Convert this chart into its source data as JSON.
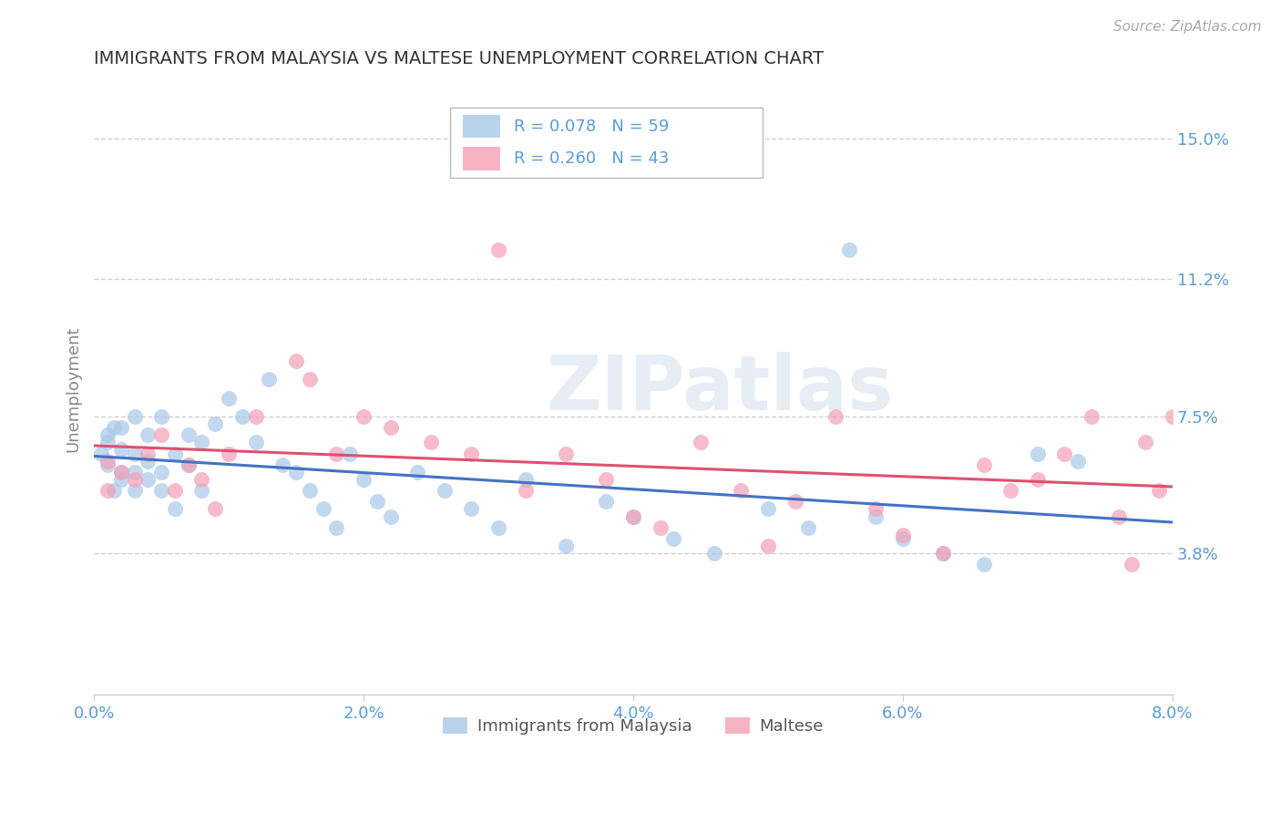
{
  "title": "IMMIGRANTS FROM MALAYSIA VS MALTESE UNEMPLOYMENT CORRELATION CHART",
  "source_text": "Source: ZipAtlas.com",
  "ylabel": "Unemployment",
  "xlim": [
    0.0,
    0.08
  ],
  "ylim": [
    0.0,
    0.165
  ],
  "xtick_labels": [
    "0.0%",
    "2.0%",
    "4.0%",
    "6.0%",
    "8.0%"
  ],
  "xtick_values": [
    0.0,
    0.02,
    0.04,
    0.06,
    0.08
  ],
  "ytick_labels": [
    "3.8%",
    "7.5%",
    "11.2%",
    "15.0%"
  ],
  "ytick_values": [
    0.038,
    0.075,
    0.112,
    0.15
  ],
  "grid_color": "#cccccc",
  "background_color": "#ffffff",
  "watermark": "ZIPatlas",
  "series1_label": "Immigrants from Malaysia",
  "series1_color": "#a8c8e8",
  "series1_line_color": "#4472c4",
  "series1_R": 0.078,
  "series1_N": 59,
  "series2_label": "Maltese",
  "series2_color": "#f4a0b5",
  "series2_line_color": "#e05070",
  "series2_R": 0.26,
  "series2_N": 43,
  "title_color": "#333333",
  "tick_label_color": "#5b9bd5",
  "legend_R_color": "#5b9bd5",
  "series1_x": [
    0.0005,
    0.001,
    0.001,
    0.001,
    0.0015,
    0.0015,
    0.002,
    0.002,
    0.002,
    0.002,
    0.003,
    0.003,
    0.003,
    0.003,
    0.004,
    0.004,
    0.004,
    0.005,
    0.005,
    0.005,
    0.006,
    0.006,
    0.007,
    0.007,
    0.008,
    0.008,
    0.009,
    0.01,
    0.011,
    0.012,
    0.013,
    0.014,
    0.015,
    0.016,
    0.017,
    0.018,
    0.019,
    0.02,
    0.021,
    0.022,
    0.024,
    0.026,
    0.028,
    0.03,
    0.032,
    0.035,
    0.038,
    0.04,
    0.043,
    0.046,
    0.05,
    0.053,
    0.056,
    0.058,
    0.06,
    0.063,
    0.066,
    0.07,
    0.073
  ],
  "series1_y": [
    0.065,
    0.068,
    0.062,
    0.07,
    0.055,
    0.072,
    0.06,
    0.058,
    0.066,
    0.072,
    0.065,
    0.055,
    0.06,
    0.075,
    0.058,
    0.063,
    0.07,
    0.055,
    0.06,
    0.075,
    0.05,
    0.065,
    0.062,
    0.07,
    0.055,
    0.068,
    0.073,
    0.08,
    0.075,
    0.068,
    0.085,
    0.062,
    0.06,
    0.055,
    0.05,
    0.045,
    0.065,
    0.058,
    0.052,
    0.048,
    0.06,
    0.055,
    0.05,
    0.045,
    0.058,
    0.04,
    0.052,
    0.048,
    0.042,
    0.038,
    0.05,
    0.045,
    0.12,
    0.048,
    0.042,
    0.038,
    0.035,
    0.065,
    0.063
  ],
  "series2_x": [
    0.001,
    0.001,
    0.002,
    0.003,
    0.004,
    0.005,
    0.006,
    0.007,
    0.008,
    0.009,
    0.01,
    0.012,
    0.015,
    0.016,
    0.018,
    0.02,
    0.022,
    0.025,
    0.028,
    0.03,
    0.032,
    0.035,
    0.038,
    0.04,
    0.042,
    0.045,
    0.048,
    0.05,
    0.052,
    0.055,
    0.058,
    0.06,
    0.063,
    0.066,
    0.068,
    0.07,
    0.072,
    0.074,
    0.076,
    0.077,
    0.078,
    0.079,
    0.08
  ],
  "series2_y": [
    0.063,
    0.055,
    0.06,
    0.058,
    0.065,
    0.07,
    0.055,
    0.062,
    0.058,
    0.05,
    0.065,
    0.075,
    0.09,
    0.085,
    0.065,
    0.075,
    0.072,
    0.068,
    0.065,
    0.12,
    0.055,
    0.065,
    0.058,
    0.048,
    0.045,
    0.068,
    0.055,
    0.04,
    0.052,
    0.075,
    0.05,
    0.043,
    0.038,
    0.062,
    0.055,
    0.058,
    0.065,
    0.075,
    0.048,
    0.035,
    0.068,
    0.055,
    0.075
  ]
}
